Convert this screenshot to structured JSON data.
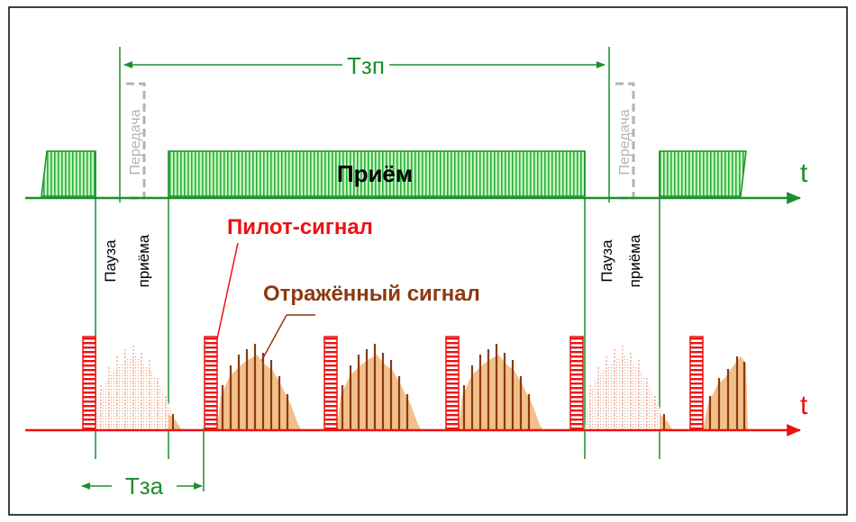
{
  "labels": {
    "period_receive": "Тзп",
    "receive": "Приём",
    "transmit": "Передача",
    "pause": "Пауза",
    "pause_of_receive": "приёма",
    "pilot_signal": "Пилот-сигнал",
    "reflected_signal": "Отражённый сигнал",
    "time_axis": "t",
    "delay": "Тза"
  },
  "colors": {
    "receive_green": "#1a8f2a",
    "receive_fill": "#b8f0b0",
    "pilot_red": "#ee1111",
    "reflect_dark": "#8b3a10",
    "reflect_light": "#f2c08a",
    "transmit_gray": "#b3b3b3"
  }
}
